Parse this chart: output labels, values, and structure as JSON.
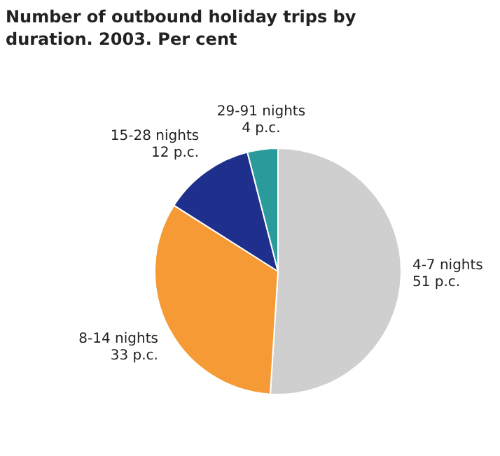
{
  "chart_data": {
    "type": "pie",
    "title": "Number of outbound holiday trips by duration. 2003. Per cent",
    "categories": [
      "4-7 nights",
      "8-14 nights",
      "15-28 nights",
      "29-91 nights"
    ],
    "values": [
      51,
      33,
      12,
      4
    ],
    "value_labels": [
      "51 p.c.",
      "33 p.c.",
      "12 p.c.",
      "4 p.c."
    ],
    "colors": [
      "#cfcfcf",
      "#f59a34",
      "#1f2f8c",
      "#2a9a9a"
    ],
    "legend": false
  }
}
